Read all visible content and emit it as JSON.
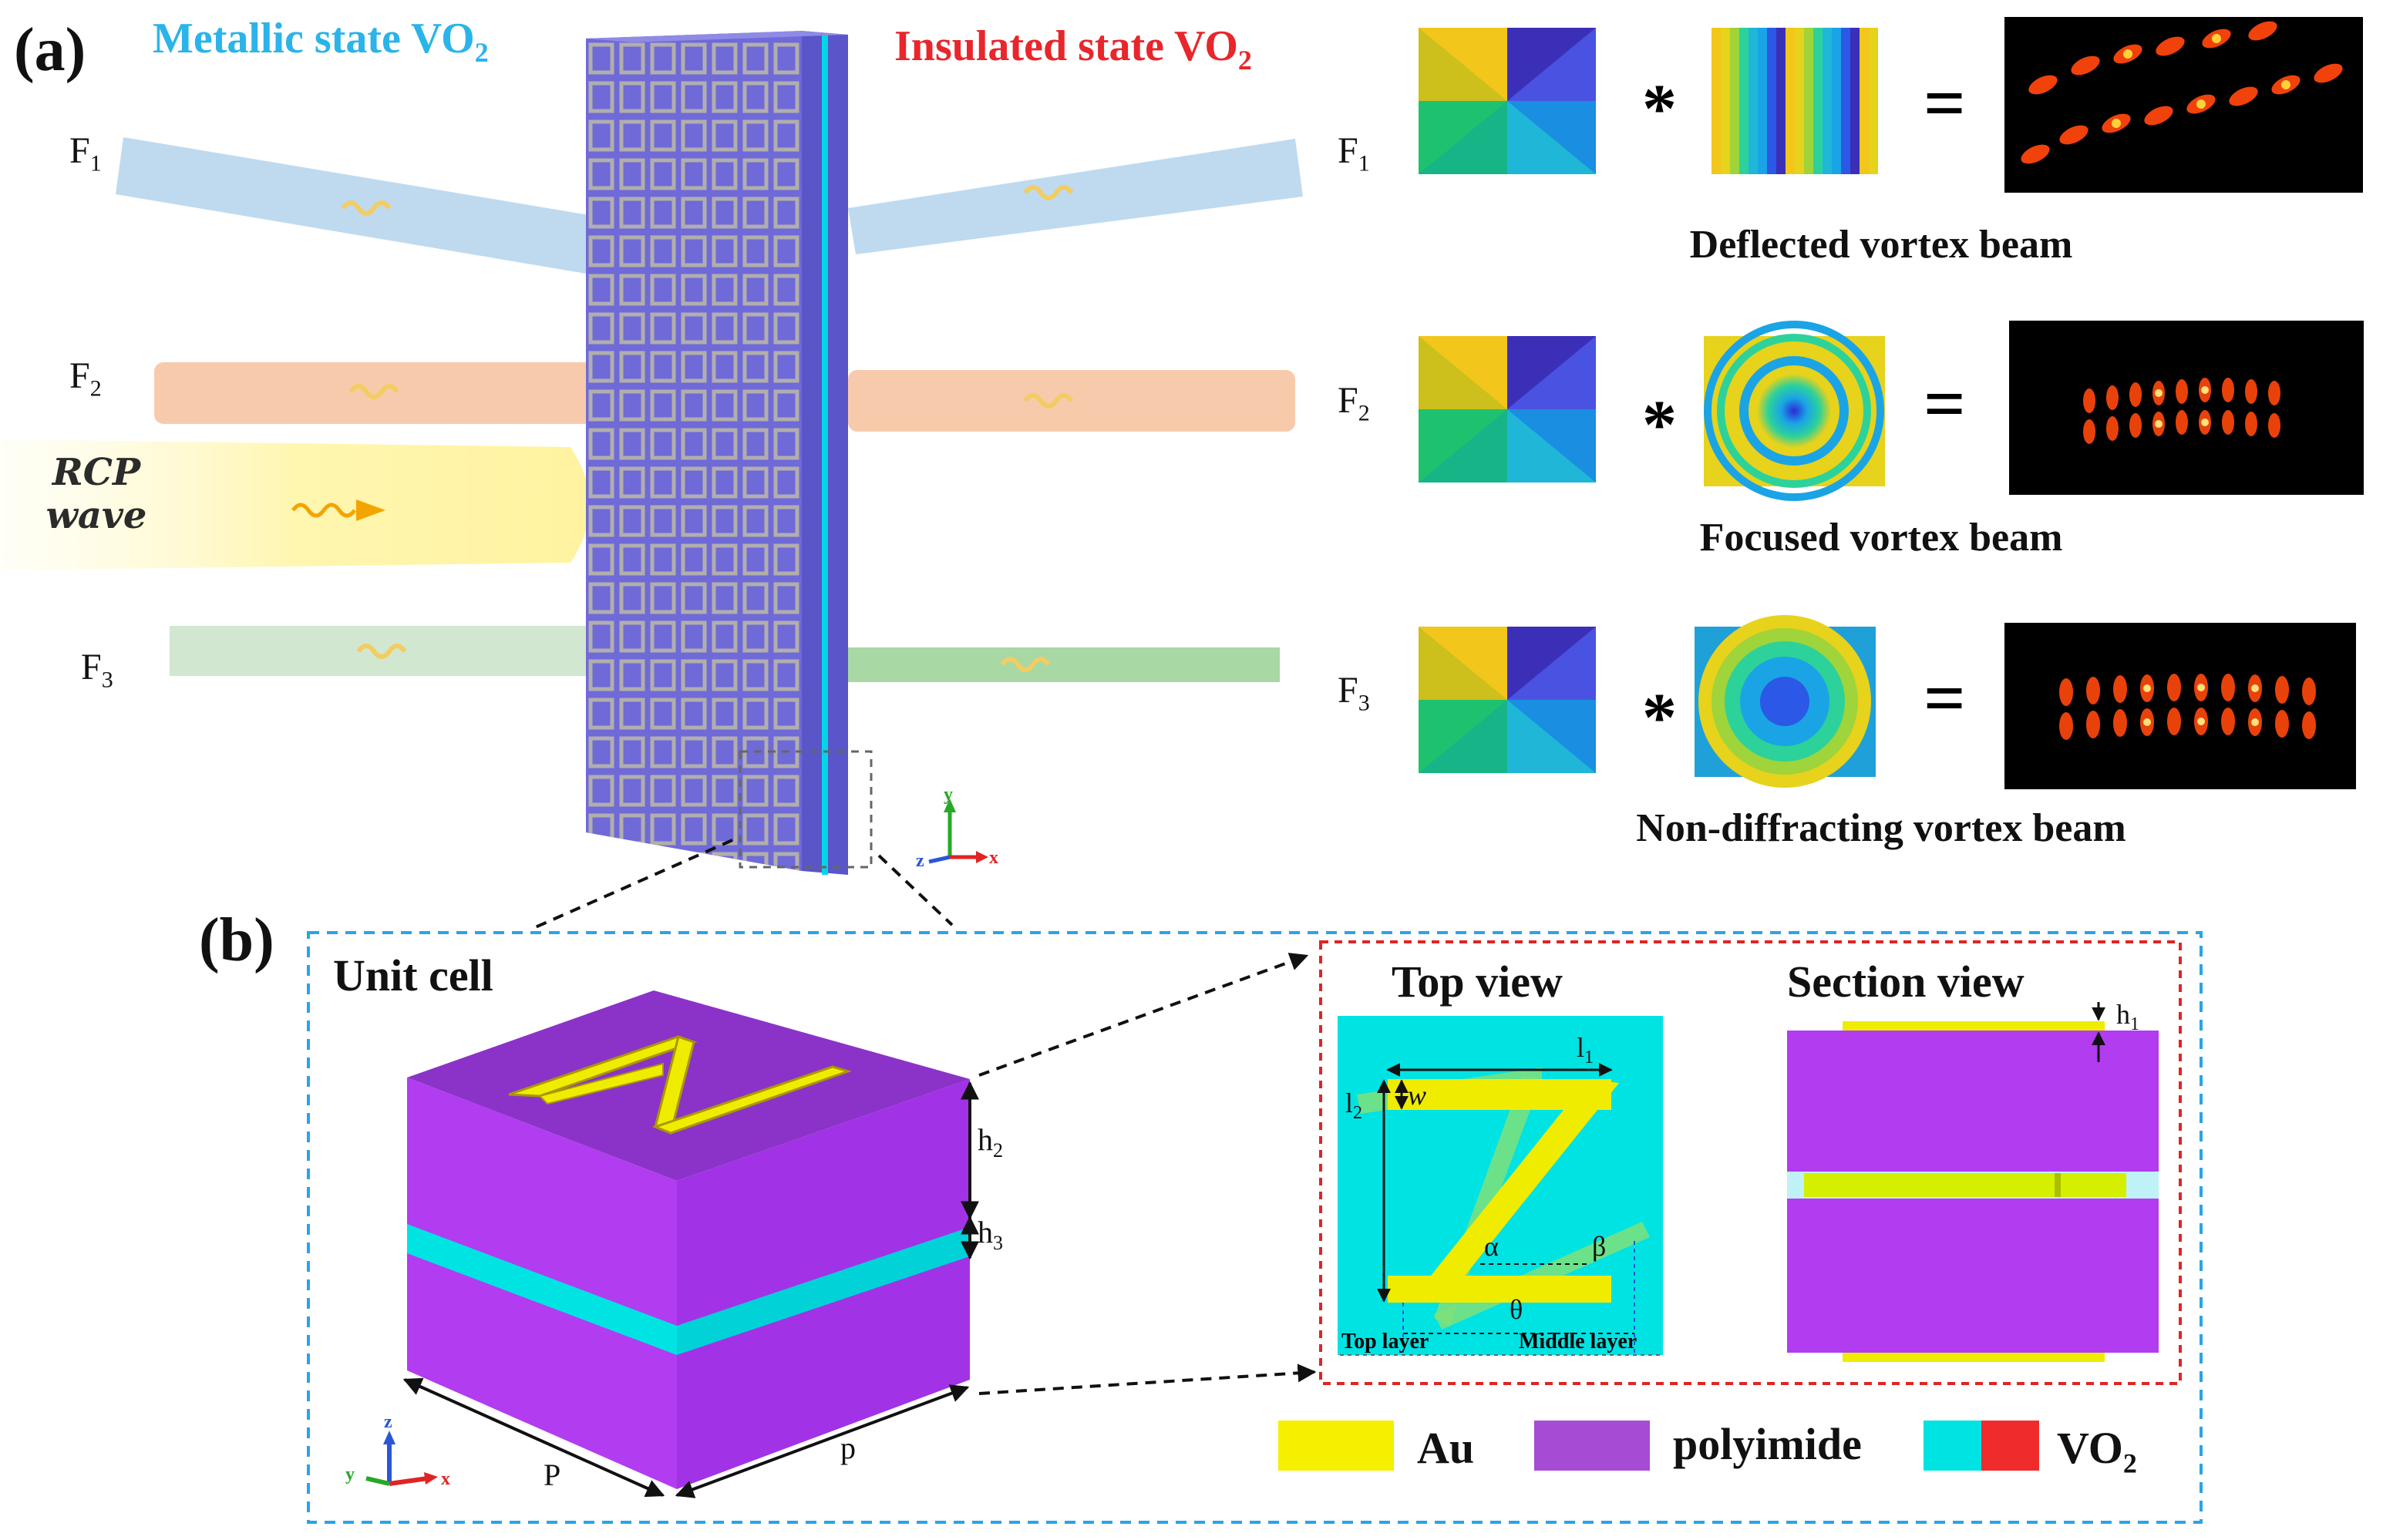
{
  "panel_labels": {
    "a": "(a)",
    "b": "(b)"
  },
  "titles": {
    "metallic": "Metallic state VO",
    "insulated": "Insulated state VO",
    "sub": "2"
  },
  "frequency_labels": {
    "f": "F",
    "f1": "1",
    "f2": "2",
    "f3": "3"
  },
  "incident": {
    "line1": "RCP",
    "line2": "wave"
  },
  "operators": {
    "conv": "*",
    "eq": "="
  },
  "captions": {
    "row1": "Deflected vortex beam",
    "row2": "Focused vortex beam",
    "row3": "Non-diffracting vortex beam"
  },
  "unit_cell": {
    "title": "Unit cell",
    "h2": "h",
    "h2_sub": "2",
    "h3": "h",
    "h3_sub": "3",
    "P": "P",
    "p": "p"
  },
  "top_view": {
    "title": "Top view",
    "l1": "l",
    "l1_sub": "1",
    "l2": "l",
    "l2_sub": "2",
    "w": "w",
    "alpha": "α",
    "beta": "β",
    "theta": "θ",
    "top_layer": "Top layer",
    "middle_layer": "Middle layer"
  },
  "section_view": {
    "title": "Section view",
    "h1": "h",
    "h1_sub": "1"
  },
  "legend": {
    "au": "Au",
    "polyimide": "polyimide",
    "vo2": "VO",
    "vo2_sub": "2"
  },
  "axes": {
    "x": "x",
    "y": "y",
    "z": "z"
  },
  "colors": {
    "au": "#f4f000",
    "polyimide": "#b23cf0",
    "vo2_metal": "#00e3e3",
    "vo2_insul": "#f02b2b",
    "slab": "#6f6ad8",
    "beam1": "#bcd8ee",
    "beam2": "#f8c7a8",
    "beam3": "#cfe6cd"
  }
}
